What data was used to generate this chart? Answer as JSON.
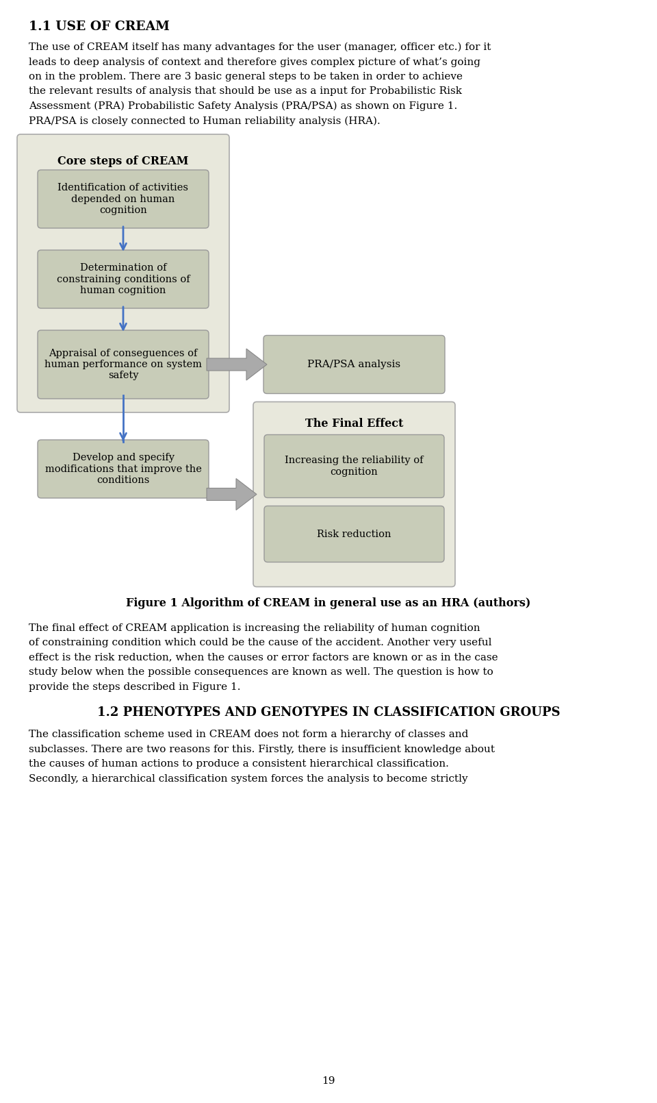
{
  "title_section": "1.1 USE OF CREAM",
  "page_number": "19",
  "bg_color": "#f5f5ee",
  "box_color": "#c8ccb8",
  "outer_box_color": "#e8e8dc",
  "arrow_color": "#4472c4",
  "core_title": "Core steps of CREAM",
  "box1_text": "Identification of activities\ndepended on human\ncognition",
  "box2_text": "Determination of\nconstraining conditions of\nhuman cognition",
  "box3_text": "Appraisal of conseguences of\nhuman performance on system\nsafety",
  "box4_text": "Develop and specify\nmodifications that improve the\nconditions",
  "pra_text": "PRA/PSA analysis",
  "final_effect_title": "The Final Effect",
  "box5_text": "Increasing the reliability of\ncognition",
  "box6_text": "Risk reduction",
  "figure_caption": "Figure 1 Algorithm of CREAM in general use as an HRA (authors)",
  "para1_lines": [
    "The use of CREAM itself has many advantages for the user (manager, officer etc.) for it",
    "leads to deep analysis of context and therefore gives complex picture of what’s going",
    "on in the problem. There are 3 basic general steps to be taken in order to achieve",
    "the relevant results of analysis that should be use as a input for Probabilistic Risk",
    "Assessment (PRA) Probabilistic Safety Analysis (PRA/PSA) as shown on Figure 1.",
    "PRA/PSA is closely connected to Human reliability analysis (HRA)."
  ],
  "para2_lines": [
    "The final effect of CREAM application is increasing the reliability of human cognition",
    "of constraining condition which could be the cause of the accident. Another very useful",
    "effect is the risk reduction, when the causes or error factors are known or as in the case",
    "study below when the possible consequences are known as well. The question is how to",
    "provide the steps described in Figure 1."
  ],
  "section2": "1.2 PHENOTYPES AND GENOTYPES IN CLASSIFICATION GROUPS",
  "para3_lines": [
    "The classification scheme used in CREAM does not form a hierarchy of classes and",
    "subclasses. There are two reasons for this. Firstly, there is insufficient knowledge about",
    "the causes of human actions to produce a consistent hierarchical classification.",
    "Secondly, a hierarchical classification system forces the analysis to become strictly"
  ]
}
